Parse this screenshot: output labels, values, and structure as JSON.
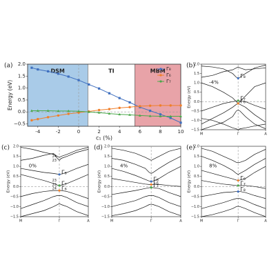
{
  "chart_data": [
    {
      "type": "line",
      "panel": "(a)",
      "xlabel": "c₁ (%)",
      "ylabel": "Energy (eV)",
      "xlim": [
        -5,
        10
      ],
      "ylim": [
        -0.6,
        2.0
      ],
      "xticks": [
        -4,
        -2,
        0,
        2,
        4,
        6,
        8,
        10
      ],
      "yticks": [
        {
          "value": -0.5,
          "label": "−0.5"
        },
        {
          "value": 0,
          "label": "0.0"
        },
        {
          "value": 0.5,
          "label": "0.5"
        },
        {
          "value": 1,
          "label": "1.0"
        },
        {
          "value": 1.5,
          "label": "1.5"
        },
        {
          "value": 2,
          "label": "2.0"
        }
      ],
      "regions": [
        {
          "label": "DSM",
          "xrange": [
            -5,
            0.9
          ],
          "color": "#a9cbe8"
        },
        {
          "label": "TI",
          "xrange": [
            0.9,
            5.5
          ],
          "color": "#ffffff"
        },
        {
          "label": "MBM",
          "xrange": [
            5.5,
            10
          ],
          "color": "#e8a3a8"
        }
      ],
      "vlines": [
        0
      ],
      "hlines": [
        0
      ],
      "legend": "upper right",
      "x": [
        -4.6,
        -4,
        -3,
        -2,
        -1,
        0,
        1,
        2,
        3,
        4,
        5,
        6,
        7,
        8,
        9,
        10
      ],
      "series": [
        {
          "name": "Γ₈",
          "color": "#3f6fbf",
          "marker": "s",
          "values": [
            1.85,
            1.78,
            1.7,
            1.6,
            1.48,
            1.33,
            1.15,
            0.98,
            0.78,
            0.58,
            0.4,
            0.2,
            0.05,
            -0.1,
            -0.25,
            -0.45
          ]
        },
        {
          "name": "Γ₆",
          "color": "#f07f2a",
          "marker": "o",
          "values": [
            -0.35,
            -0.3,
            -0.22,
            -0.15,
            -0.08,
            -0.03,
            0.02,
            0.08,
            0.12,
            0.17,
            0.2,
            0.24,
            0.26,
            0.27,
            0.27,
            0.27
          ]
        },
        {
          "name": "Γ₇",
          "color": "#4aa84a",
          "marker": "^",
          "values": [
            0.05,
            0.05,
            0.05,
            0.04,
            0.04,
            0.03,
            0.0,
            -0.03,
            -0.07,
            -0.1,
            -0.12,
            -0.15,
            -0.17,
            -0.18,
            -0.18,
            -0.18
          ]
        }
      ]
    },
    {
      "type": "band",
      "panel": "(b)",
      "ylabel": "Energy (eV)",
      "annotation": "-4%",
      "xlim": [
        0,
        1.75
      ],
      "ylim": [
        -1.5,
        2.0
      ],
      "xticks": [
        {
          "value": 0,
          "label": "M"
        },
        {
          "value": 1,
          "label": "Γ"
        },
        {
          "value": 1.75,
          "label": "A"
        }
      ],
      "yticks": [
        {
          "value": -1.5,
          "label": "−1.5"
        },
        {
          "value": -1,
          "label": "−1.0"
        },
        {
          "value": -0.5,
          "label": "−0.5"
        },
        {
          "value": 0,
          "label": "0.0"
        },
        {
          "value": 0.5,
          "label": "0.5"
        },
        {
          "value": 1,
          "label": "1.0"
        },
        {
          "value": 1.5,
          "label": "1.5"
        },
        {
          "value": 2,
          "label": "2.0"
        }
      ],
      "vlines": [
        1
      ],
      "hlines": [
        0
      ],
      "x": [
        0,
        0.3,
        0.6,
        0.85,
        0.95,
        1,
        1.05,
        1.2,
        1.45,
        1.75
      ],
      "bands": [
        [
          1.9,
          1.85,
          1.75,
          1.5,
          1.3,
          1.25,
          1.3,
          1.5,
          1.8,
          1.95
        ],
        [
          1.3,
          1.4,
          1.6,
          1.7,
          1.8,
          1.85,
          1.8,
          1.7,
          1.75,
          1.8
        ],
        [
          1.0,
          0.8,
          0.5,
          0.2,
          0.0,
          -0.1,
          0.0,
          0.3,
          0.8,
          1.0
        ],
        [
          -0.5,
          -0.3,
          -0.1,
          0.0,
          0.04,
          0.05,
          0.04,
          0.0,
          -0.2,
          -0.4
        ],
        [
          -1.2,
          -0.9,
          -0.6,
          -0.3,
          -0.15,
          -0.1,
          -0.15,
          -0.3,
          -0.7,
          -1.1
        ],
        [
          -1.5,
          -1.3,
          -1.1,
          -0.8,
          -0.5,
          -0.45,
          -0.5,
          -0.8,
          -1.2,
          -1.45
        ],
        [
          -0.9,
          -1.0,
          -1.2,
          -1.4,
          -1.45,
          -1.5,
          -1.45,
          -1.4,
          -1.3,
          -1.2
        ]
      ],
      "gamma_points": [
        {
          "label": "Γ₈",
          "value": 1.25,
          "color": "#3f6fbf"
        },
        {
          "label": "Γ₇",
          "value": 0.05,
          "color": "#4aa84a"
        },
        {
          "label": "Γ₆",
          "value": -0.1,
          "color": "#f07f2a"
        }
      ]
    },
    {
      "type": "band",
      "panel": "(c)",
      "ylabel": "Energy (eV)",
      "annotation": "0%",
      "xlim": [
        0,
        1.75
      ],
      "ylim": [
        -1.5,
        2.0
      ],
      "xticks": [
        {
          "value": 0,
          "label": "M"
        },
        {
          "value": 1,
          "label": "Γ"
        },
        {
          "value": 1.75,
          "label": "A"
        }
      ],
      "yticks": [
        {
          "value": -1.5,
          "label": "−1.5"
        },
        {
          "value": -1,
          "label": "−1.0"
        },
        {
          "value": -0.5,
          "label": "−0.5"
        },
        {
          "value": 0,
          "label": "0.0"
        },
        {
          "value": 0.5,
          "label": "0.5"
        },
        {
          "value": 1,
          "label": "1.0"
        },
        {
          "value": 1.5,
          "label": "1.5"
        },
        {
          "value": 2,
          "label": "2.0"
        }
      ],
      "vlines": [
        1
      ],
      "hlines": [
        0
      ],
      "x": [
        0,
        0.3,
        0.6,
        0.85,
        0.95,
        1,
        1.05,
        1.2,
        1.45,
        1.75
      ],
      "bands": [
        [
          1.95,
          1.85,
          1.7,
          1.6,
          1.5,
          1.45,
          1.5,
          1.6,
          1.8,
          1.95
        ],
        [
          1.3,
          1.4,
          1.55,
          1.65,
          1.4,
          1.3,
          1.4,
          1.5,
          1.7,
          1.85
        ],
        [
          0.9,
          0.8,
          0.7,
          0.65,
          0.62,
          0.6,
          0.62,
          0.7,
          0.9,
          1.1
        ],
        [
          0.6,
          0.45,
          0.3,
          0.15,
          0.07,
          0.05,
          0.07,
          0.15,
          0.35,
          0.6
        ],
        [
          -0.5,
          -0.35,
          -0.25,
          -0.2,
          -0.2,
          -0.2,
          -0.2,
          -0.25,
          -0.4,
          -0.6
        ],
        [
          -1.1,
          -0.9,
          -0.7,
          -0.5,
          -0.45,
          -0.45,
          -0.45,
          -0.55,
          -0.8,
          -1.0
        ],
        [
          -1.5,
          -1.35,
          -1.2,
          -1.0,
          -0.9,
          -0.85,
          -0.9,
          -1.0,
          -1.25,
          -1.45
        ]
      ],
      "gamma_points": [
        {
          "label": "Γ₈",
          "value": 0.6,
          "color": "#3f6fbf"
        },
        {
          "label": "Γ₇",
          "value": 0.05,
          "color": "#4aa84a"
        },
        {
          "label": "Γ₆",
          "value": -0.2,
          "color": "#f07f2a"
        }
      ],
      "small_labels": [
        {
          "label": "24",
          "value": 1.5
        },
        {
          "label": "23",
          "value": 1.3
        },
        {
          "label": "23",
          "value": 0.3
        },
        {
          "label": "23",
          "value": 0.1
        },
        {
          "label": "24",
          "value": -0.1
        }
      ]
    },
    {
      "type": "band",
      "panel": "(d)",
      "ylabel": "Energy (eV)",
      "annotation": "4%",
      "xlim": [
        0,
        1.75
      ],
      "ylim": [
        -1.5,
        2.0
      ],
      "xticks": [
        {
          "value": 0,
          "label": "M"
        },
        {
          "value": 1,
          "label": "Γ"
        },
        {
          "value": 1.75,
          "label": "A"
        }
      ],
      "yticks": [
        {
          "value": -1.5,
          "label": "−1.5"
        },
        {
          "value": -1,
          "label": "−1.0"
        },
        {
          "value": -0.5,
          "label": "−0.5"
        },
        {
          "value": 0,
          "label": "0.0"
        },
        {
          "value": 0.5,
          "label": "0.5"
        },
        {
          "value": 1,
          "label": "1.0"
        },
        {
          "value": 1.5,
          "label": "1.5"
        },
        {
          "value": 2,
          "label": "2.0"
        }
      ],
      "vlines": [
        1
      ],
      "hlines": [
        0
      ],
      "x": [
        0,
        0.3,
        0.6,
        0.85,
        0.95,
        1,
        1.05,
        1.2,
        1.45,
        1.75
      ],
      "bands": [
        [
          1.9,
          1.8,
          1.65,
          1.45,
          1.35,
          1.3,
          1.35,
          1.5,
          1.75,
          1.9
        ],
        [
          1.4,
          1.3,
          1.1,
          0.9,
          0.7,
          0.65,
          0.7,
          0.9,
          1.2,
          1.5
        ],
        [
          0.9,
          0.75,
          0.55,
          0.35,
          0.27,
          0.25,
          0.27,
          0.4,
          0.7,
          1.0
        ],
        [
          0.4,
          0.3,
          0.2,
          0.12,
          0.1,
          0.1,
          0.1,
          0.1,
          0.05,
          0.0
        ],
        [
          -0.4,
          -0.3,
          -0.2,
          -0.1,
          -0.06,
          -0.05,
          -0.06,
          -0.1,
          -0.3,
          -0.5
        ],
        [
          -1.0,
          -0.85,
          -0.7,
          -0.5,
          -0.45,
          -0.45,
          -0.45,
          -0.55,
          -0.8,
          -1.0
        ],
        [
          -1.45,
          -1.35,
          -1.2,
          -1.0,
          -0.9,
          -0.88,
          -0.9,
          -1.0,
          -1.25,
          -1.45
        ]
      ],
      "gamma_points": [
        {
          "label": "Γ₈",
          "value": 0.25,
          "color": "#3f6fbf"
        },
        {
          "label": "Γ₆",
          "value": 0.1,
          "color": "#f07f2a"
        },
        {
          "label": "Γ₇",
          "value": -0.05,
          "color": "#4aa84a"
        }
      ]
    },
    {
      "type": "band",
      "panel": "(e)",
      "ylabel": "Energy (eV)",
      "annotation": "8%",
      "xlim": [
        0,
        1.75
      ],
      "ylim": [
        -1.5,
        2.0
      ],
      "xticks": [
        {
          "value": 0,
          "label": "M"
        },
        {
          "value": 1,
          "label": "Γ"
        },
        {
          "value": 1.75,
          "label": "A"
        }
      ],
      "yticks": [
        {
          "value": -1.5,
          "label": "−1.5"
        },
        {
          "value": -1,
          "label": "−1.0"
        },
        {
          "value": -0.5,
          "label": "−0.5"
        },
        {
          "value": 0,
          "label": "0.0"
        },
        {
          "value": 0.5,
          "label": "0.5"
        },
        {
          "value": 1,
          "label": "1.0"
        },
        {
          "value": 1.5,
          "label": "1.5"
        },
        {
          "value": 2,
          "label": "2.0"
        }
      ],
      "vlines": [
        1
      ],
      "hlines": [
        0
      ],
      "x": [
        0,
        0.3,
        0.6,
        0.85,
        0.95,
        1,
        1.05,
        1.2,
        1.45,
        1.75
      ],
      "bands": [
        [
          1.9,
          1.75,
          1.5,
          1.3,
          1.2,
          1.18,
          1.2,
          1.3,
          1.6,
          1.85
        ],
        [
          1.5,
          1.3,
          1.05,
          0.8,
          0.65,
          0.6,
          0.65,
          0.8,
          1.1,
          1.4
        ],
        [
          0.8,
          0.65,
          0.5,
          0.38,
          0.32,
          0.3,
          0.32,
          0.4,
          0.7,
          1.0
        ],
        [
          0.3,
          0.2,
          0.12,
          0.07,
          0.05,
          0.05,
          0.05,
          0.05,
          0.0,
          -0.1
        ],
        [
          -0.5,
          -0.4,
          -0.3,
          -0.27,
          -0.25,
          -0.25,
          -0.25,
          -0.3,
          -0.45,
          -0.6
        ],
        [
          -1.1,
          -0.95,
          -0.8,
          -0.65,
          -0.6,
          -0.6,
          -0.6,
          -0.7,
          -0.9,
          -1.1
        ],
        [
          -1.5,
          -1.4,
          -1.25,
          -1.1,
          -1.0,
          -0.98,
          -1.0,
          -1.1,
          -1.3,
          -1.5
        ]
      ],
      "gamma_points": [
        {
          "label": "Γ₆",
          "value": 0.3,
          "color": "#f07f2a"
        },
        {
          "label": "Γ₇",
          "value": 0.05,
          "color": "#4aa84a"
        },
        {
          "label": "Γ₈",
          "value": -0.25,
          "color": "#3f6fbf"
        }
      ]
    }
  ]
}
